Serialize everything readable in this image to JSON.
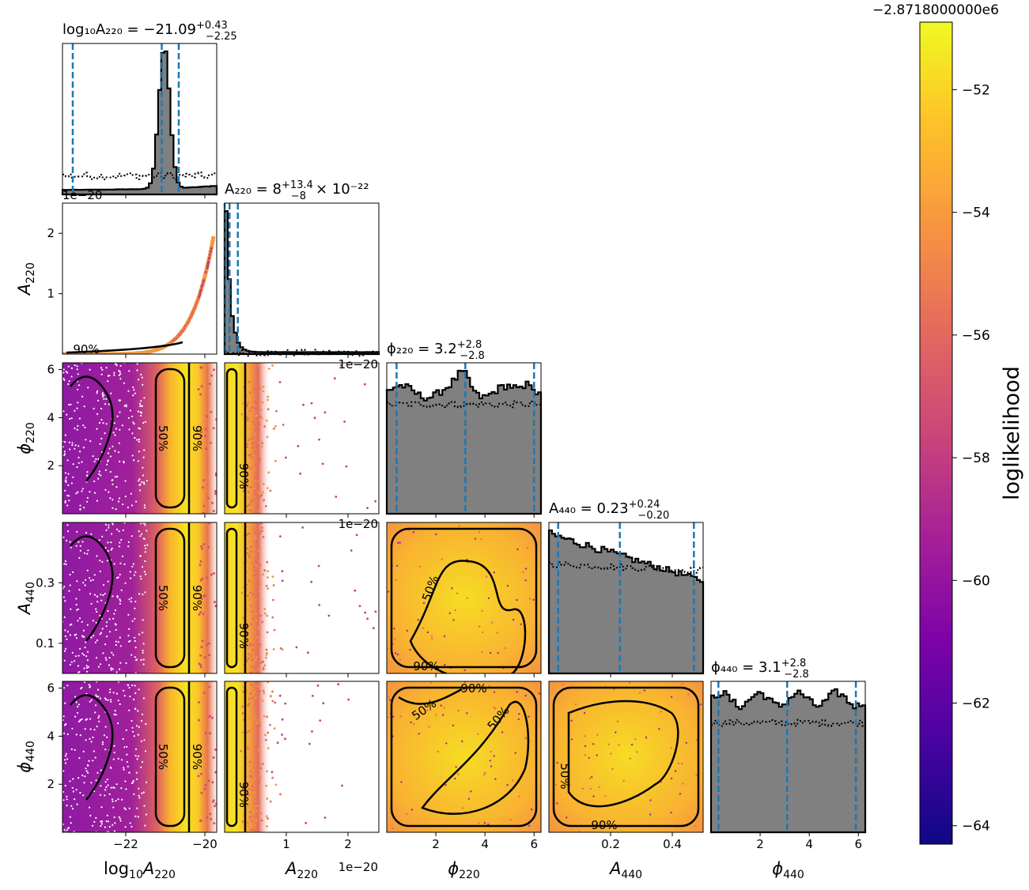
{
  "chart_data": {
    "type": "corner",
    "parameters": [
      {
        "key": "log10A220",
        "label_main": "log",
        "label_sub1": "10",
        "label_main2": "A",
        "label_sub2": "220",
        "range": [
          -23.6,
          -19.7
        ],
        "ticks": [
          -22,
          -20
        ],
        "tick_labels": [
          "−22",
          "−20"
        ],
        "median": -21.09,
        "lower": -23.34,
        "upper": -20.66,
        "title": "log₁₀A₂₂₀ = −21.09 +0.43 −2.25",
        "title_main": "log₁₀A₂₂₀ = −21.09",
        "title_sup": "+0.43",
        "title_sub": "−2.25"
      },
      {
        "key": "A220",
        "label_main": "A",
        "label_sub": "220",
        "range": [
          0,
          2.5e-20
        ],
        "ticks": [
          1e-20,
          2e-20
        ],
        "tick_labels": [
          "1",
          "2"
        ],
        "offset_text": "1e−20",
        "median": 8e-22,
        "lower": 0,
        "upper": 2.14e-21,
        "title": "A₂₂₀ = 8 +13.4 −8 × 10⁻²²",
        "title_main": "A₂₂₀ = 8",
        "title_sup": "+13.4",
        "title_sub": "−8",
        "title_tail": "× 10⁻²²"
      },
      {
        "key": "phi220",
        "label_main": "ϕ",
        "label_sub": "220",
        "range": [
          0,
          6.283
        ],
        "ticks": [
          2,
          4,
          6
        ],
        "tick_labels": [
          "2",
          "4",
          "6"
        ],
        "median": 3.2,
        "lower": 0.4,
        "upper": 6.0,
        "title": "ϕ₂₂₀ = 3.2 +2.8 −2.8",
        "title_main": "ϕ₂₂₀ = 3.2",
        "title_sup": "+2.8",
        "title_sub": "−2.8"
      },
      {
        "key": "A440",
        "label_main": "A",
        "label_sub": "440",
        "range": [
          0,
          0.5
        ],
        "ticks": [
          0.1,
          0.3
        ],
        "tick_labels": [
          "0.1",
          "0.3"
        ],
        "xticks": [
          0.2,
          0.4
        ],
        "xtick_labels": [
          "0.2",
          "0.4"
        ],
        "median": 0.23,
        "lower": 0.03,
        "upper": 0.47,
        "title": "A₄₄₀ = 0.23 +0.24 −0.20",
        "title_main": "A₄₄₀ = 0.23",
        "title_sup": "+0.24",
        "title_sub": "−0.20"
      },
      {
        "key": "phi440",
        "label_main": "ϕ",
        "label_sub": "440",
        "range": [
          0,
          6.283
        ],
        "ticks": [
          2,
          4,
          6
        ],
        "tick_labels": [
          "2",
          "4",
          "6"
        ],
        "median": 3.1,
        "lower": 0.3,
        "upper": 5.9,
        "title": "ϕ₄₄₀ = 3.1 +2.8 −2.8",
        "title_main": "ϕ₄₄₀ = 3.1",
        "title_sup": "+2.8",
        "title_sub": "−2.8"
      }
    ],
    "offset_labels": [
      "1e−20",
      "1e−20",
      "1e−20",
      "1e−20"
    ],
    "contour_labels": [
      "50%",
      "90%"
    ],
    "colorbar": {
      "label": "loglikelihood",
      "offset_text": "−2.8718000000e6",
      "range": [
        -64.3,
        -50.9
      ],
      "ticks": [
        -52,
        -54,
        -56,
        -58,
        -60,
        -62,
        -64
      ],
      "tick_labels": [
        "−52",
        "−54",
        "−56",
        "−58",
        "−60",
        "−62",
        "−64"
      ],
      "colormap": "plasma"
    },
    "hist_fill": "#808080",
    "quantile_color": "#1f77b4"
  }
}
